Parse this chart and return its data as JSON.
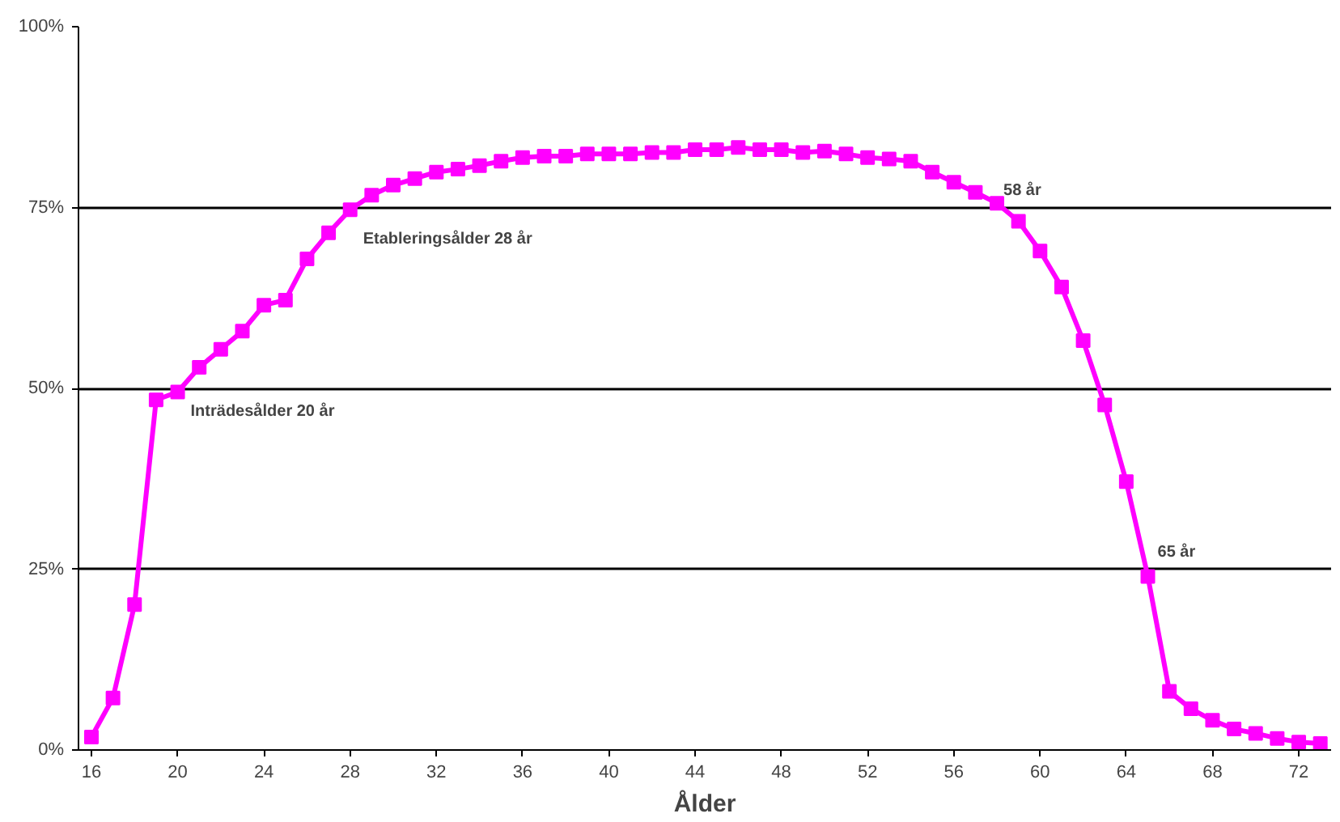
{
  "chart_data": {
    "type": "line",
    "xlabel": "Ålder",
    "x": [
      16,
      17,
      18,
      19,
      20,
      21,
      22,
      23,
      24,
      25,
      26,
      27,
      28,
      29,
      30,
      31,
      32,
      33,
      34,
      35,
      36,
      37,
      38,
      39,
      40,
      41,
      42,
      43,
      44,
      45,
      46,
      47,
      48,
      49,
      50,
      51,
      52,
      53,
      54,
      55,
      56,
      57,
      58,
      59,
      60,
      61,
      62,
      63,
      64,
      65,
      66,
      67,
      68,
      69,
      70,
      71,
      72,
      73
    ],
    "series": [
      {
        "color": "#ff00ff",
        "values": [
          1.8,
          7.2,
          20.1,
          48.4,
          49.5,
          52.9,
          55.4,
          57.9,
          61.5,
          62.2,
          67.9,
          71.5,
          74.7,
          76.7,
          78.1,
          79.0,
          79.9,
          80.3,
          80.8,
          81.4,
          81.9,
          82.1,
          82.1,
          82.4,
          82.4,
          82.4,
          82.6,
          82.6,
          83.0,
          83.0,
          83.3,
          83.0,
          83.0,
          82.6,
          82.8,
          82.4,
          81.9,
          81.7,
          81.4,
          79.9,
          78.5,
          77.1,
          75.6,
          73.1,
          69.0,
          64.0,
          56.6,
          47.7,
          37.1,
          24.0,
          8.1,
          5.7,
          4.1,
          2.9,
          2.3,
          1.6,
          1.1,
          0.9
        ]
      }
    ],
    "marker": "square",
    "line_style": "solid",
    "grid": "y",
    "xlim": [
      15.4,
      73.5
    ],
    "xticks": [
      16,
      20,
      24,
      28,
      32,
      36,
      40,
      44,
      48,
      52,
      56,
      60,
      64,
      68,
      72
    ],
    "ylim": [
      0,
      100
    ],
    "yticks": [
      {
        "value": 0,
        "label": "0%"
      },
      {
        "value": 25,
        "label": "25%"
      },
      {
        "value": 50,
        "label": "50%"
      },
      {
        "value": 75,
        "label": "75%"
      },
      {
        "value": 100,
        "label": "100%"
      }
    ],
    "annotations": [
      {
        "text": "Inträdesålder 20 år",
        "x": 20,
        "y": 50
      },
      {
        "text": "Etableringsålder 28 år",
        "x": 28,
        "y": 75
      },
      {
        "text": "58 år",
        "x": 58,
        "y": 75
      },
      {
        "text": "65 år",
        "x": 65,
        "y": 25
      }
    ]
  }
}
